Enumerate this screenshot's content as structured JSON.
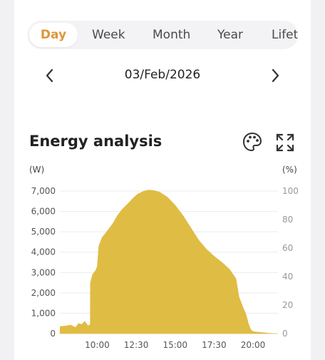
{
  "tabs": [
    {
      "label": "Day",
      "active": true
    },
    {
      "label": "Week",
      "active": false
    },
    {
      "label": "Month",
      "active": false
    },
    {
      "label": "Year",
      "active": false
    },
    {
      "label": "Lifet",
      "active": false
    }
  ],
  "date": {
    "label": "03/Feb/2026",
    "prev_icon": "chevron-left-icon",
    "next_icon": "chevron-right-icon"
  },
  "section": {
    "title": "Energy analysis",
    "palette_icon": "palette-icon",
    "expand_icon": "expand-icon"
  },
  "colors": {
    "accent": "#e0953a",
    "area": "#dfbc44",
    "text": "#222222"
  },
  "chart_data": {
    "type": "area",
    "left_unit": "(W)",
    "right_unit": "(%)",
    "y_ticks": [
      "0",
      "1,000",
      "2,000",
      "3,000",
      "4,000",
      "5,000",
      "6,000",
      "7,000"
    ],
    "y_tick_values": [
      0,
      1000,
      2000,
      3000,
      4000,
      5000,
      6000,
      7000
    ],
    "y2_ticks": [
      "0",
      "20",
      "40",
      "60",
      "80",
      "100"
    ],
    "y2_tick_values": [
      0,
      20,
      40,
      60,
      80,
      100
    ],
    "ylim": [
      0,
      7000
    ],
    "y2lim": [
      0,
      100
    ],
    "x_ticks": [
      "10:00",
      "12:30",
      "15:00",
      "17:30",
      "20:00"
    ],
    "x_tick_hours": [
      10,
      12.5,
      15,
      17.5,
      20
    ],
    "xlim_hours": [
      7.6,
      21.6
    ],
    "grid": true,
    "series": [
      {
        "points": [
          [
            7.6,
            0
          ],
          [
            7.62,
            350
          ],
          [
            8.0,
            380
          ],
          [
            8.3,
            420
          ],
          [
            8.6,
            300
          ],
          [
            8.8,
            500
          ],
          [
            9.0,
            450
          ],
          [
            9.2,
            600
          ],
          [
            9.4,
            380
          ],
          [
            9.55,
            450
          ],
          [
            9.56,
            2500
          ],
          [
            9.7,
            2900
          ],
          [
            9.9,
            3100
          ],
          [
            10.0,
            3300
          ],
          [
            10.1,
            4300
          ],
          [
            10.3,
            4700
          ],
          [
            10.6,
            5000
          ],
          [
            11.0,
            5400
          ],
          [
            11.3,
            5800
          ],
          [
            11.6,
            6100
          ],
          [
            12.0,
            6400
          ],
          [
            12.3,
            6650
          ],
          [
            12.6,
            6850
          ],
          [
            13.0,
            7000
          ],
          [
            13.3,
            7050
          ],
          [
            13.6,
            7030
          ],
          [
            14.0,
            6950
          ],
          [
            14.5,
            6700
          ],
          [
            15.0,
            6300
          ],
          [
            15.5,
            5800
          ],
          [
            16.0,
            5200
          ],
          [
            16.5,
            4600
          ],
          [
            17.0,
            4150
          ],
          [
            17.5,
            3800
          ],
          [
            18.0,
            3500
          ],
          [
            18.5,
            3150
          ],
          [
            18.9,
            2700
          ],
          [
            19.1,
            1800
          ],
          [
            19.4,
            1200
          ],
          [
            19.5,
            1050
          ],
          [
            19.6,
            800
          ],
          [
            19.7,
            500
          ],
          [
            19.85,
            200
          ],
          [
            20.0,
            100
          ],
          [
            20.5,
            60
          ],
          [
            21.0,
            20
          ],
          [
            21.6,
            0
          ]
        ]
      }
    ]
  }
}
